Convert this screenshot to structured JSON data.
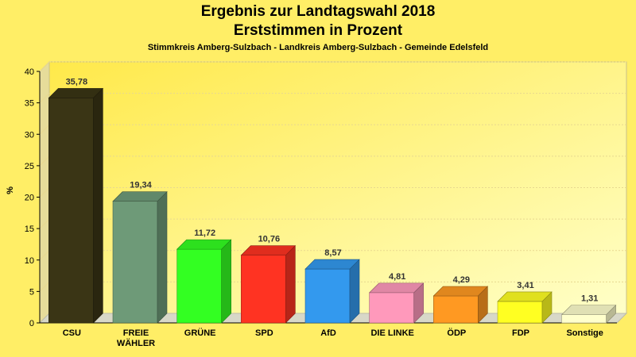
{
  "chart_data": {
    "type": "bar",
    "title": "Ergebnis zur Landtagswahl 2018",
    "subtitle": "Erststimmen in Prozent",
    "caption": "Stimmkreis Amberg-Sulzbach - Landkreis Amberg-Sulzbach - Gemeinde Edelsfeld",
    "ylabel": "%",
    "ylim": [
      0,
      40
    ],
    "yticks": [
      0,
      5,
      10,
      15,
      20,
      25,
      30,
      35,
      40
    ],
    "grid": true,
    "legend": "none",
    "categories": [
      "CSU",
      "FREIE WÄHLER",
      "GRÜNE",
      "SPD",
      "AfD",
      "DIE LINKE",
      "ÖDP",
      "FDP",
      "Sonstige"
    ],
    "values": [
      35.78,
      19.34,
      11.72,
      10.76,
      8.57,
      4.81,
      4.29,
      3.41,
      1.31
    ],
    "value_labels": [
      "35,78",
      "19,34",
      "11,72",
      "10,76",
      "8,57",
      "4,81",
      "4,29",
      "3,41",
      "1,31"
    ],
    "colors": [
      "#3a3515",
      "#6e9a78",
      "#33ff22",
      "#ff3322",
      "#3399ee",
      "#ff99bb",
      "#ff9922",
      "#ffff22",
      "#ffffcc"
    ]
  }
}
